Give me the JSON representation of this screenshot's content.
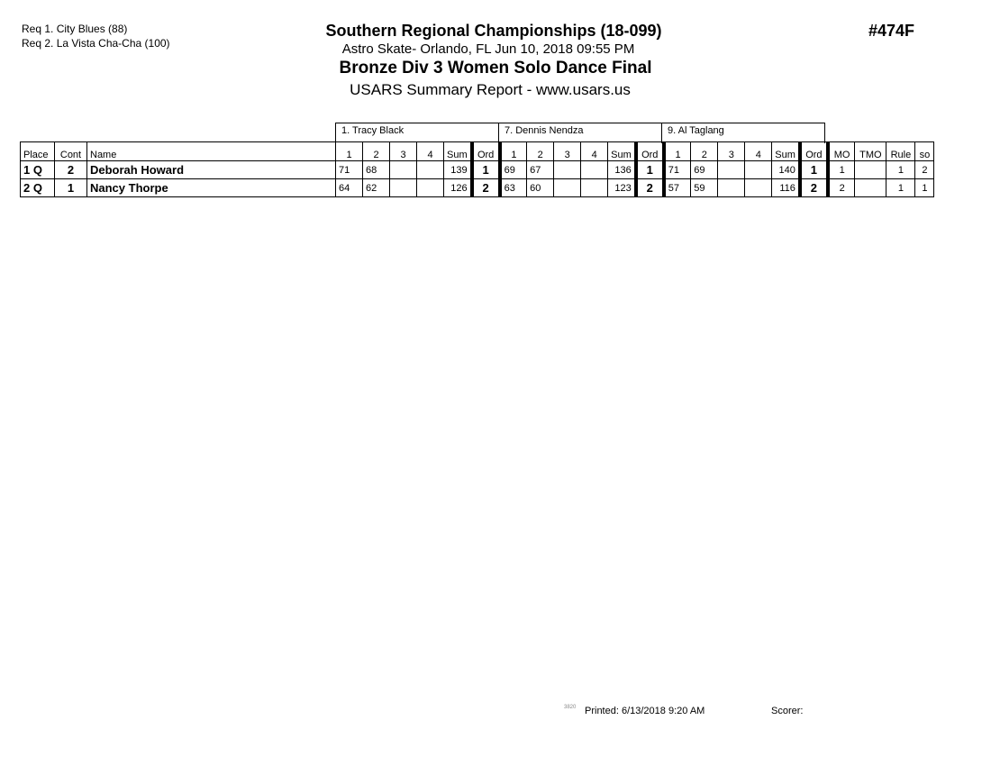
{
  "requests": [
    "Req  1.  City Blues (88)",
    "Req  2.  La Vista Cha-Cha (100)"
  ],
  "header": {
    "title": "Southern Regional Championships (18-099)",
    "subtitle": "Astro Skate- Orlando, FL  Jun 10, 2018  09:55 PM",
    "event": "Bronze Div 3  Women Solo Dance Final",
    "report": "USARS Summary Report - www.usars.us",
    "event_code": "#474F"
  },
  "judges": [
    "1.  Tracy Black",
    "7.  Dennis Nendza",
    "9.  Al Taglang"
  ],
  "columns": {
    "place": "Place",
    "cont": "Cont",
    "name": "Name",
    "scores": [
      "1",
      "2",
      "3",
      "4"
    ],
    "sum": "Sum",
    "ord": "Ord",
    "mo": "MO",
    "tmo": "TMO",
    "rule": "Rule",
    "so": "so"
  },
  "rows": [
    {
      "place": "1 Q",
      "cont": "2",
      "name": "Deborah Howard",
      "judges": [
        {
          "scores": [
            "71",
            "68",
            "",
            ""
          ],
          "sum": "139",
          "ord": "1"
        },
        {
          "scores": [
            "69",
            "67",
            "",
            ""
          ],
          "sum": "136",
          "ord": "1"
        },
        {
          "scores": [
            "71",
            "69",
            "",
            ""
          ],
          "sum": "140",
          "ord": "1"
        }
      ],
      "mo": "1",
      "tmo": "",
      "rule": "1",
      "so": "2"
    },
    {
      "place": "2 Q",
      "cont": "1",
      "name": "Nancy Thorpe",
      "judges": [
        {
          "scores": [
            "64",
            "62",
            "",
            ""
          ],
          "sum": "126",
          "ord": "2"
        },
        {
          "scores": [
            "63",
            "60",
            "",
            ""
          ],
          "sum": "123",
          "ord": "2"
        },
        {
          "scores": [
            "57",
            "59",
            "",
            ""
          ],
          "sum": "116",
          "ord": "2"
        }
      ],
      "mo": "2",
      "tmo": "",
      "rule": "1",
      "so": "1"
    }
  ],
  "footer": {
    "code": "3820",
    "printed": "Printed:  6/13/2018  9:20 AM",
    "scorer": "Scorer:"
  }
}
